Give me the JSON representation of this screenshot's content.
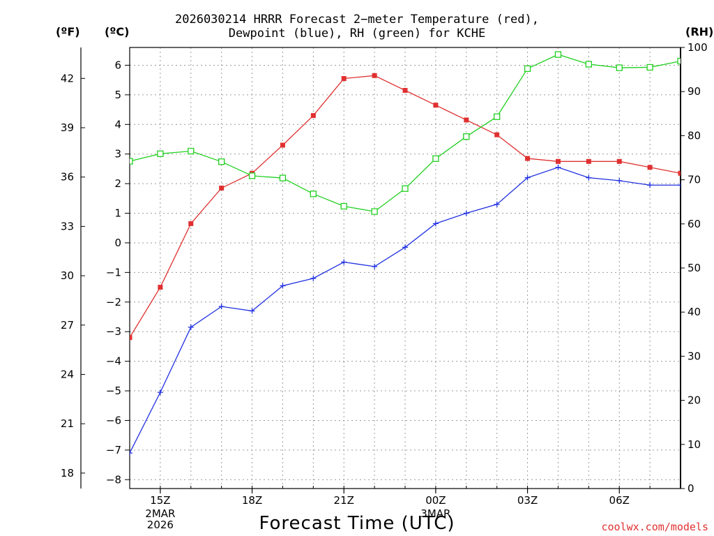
{
  "chart_data": {
    "type": "line",
    "title": "2026030214 HRRR Forecast 2−meter Temperature (red),",
    "subtitle": "Dewpoint (blue), RH (green) for KCHE",
    "xlabel": "Forecast Time (UTC)",
    "units": {
      "left_outer": "(ºF)",
      "left_inner": "(ºC)",
      "right": "(RH)"
    },
    "x": [
      14,
      15,
      16,
      17,
      18,
      19,
      20,
      21,
      22,
      23,
      24,
      25,
      26,
      27,
      28,
      29,
      30,
      31,
      32
    ],
    "xlim": [
      14,
      32
    ],
    "x_ticks": [
      {
        "x": 15,
        "label": "15Z"
      },
      {
        "x": 18,
        "label": "18Z"
      },
      {
        "x": 21,
        "label": "21Z"
      },
      {
        "x": 24,
        "label": "00Z"
      },
      {
        "x": 27,
        "label": "03Z"
      },
      {
        "x": 30,
        "label": "06Z"
      }
    ],
    "date_labels": [
      {
        "x": 15,
        "lines": [
          "2MAR",
          "2026"
        ]
      },
      {
        "x": 24,
        "lines": [
          "3MAR"
        ]
      }
    ],
    "ylim_c": [
      -8.3,
      6.6
    ],
    "yticks_c": [
      -8,
      -7,
      -6,
      -5,
      -4,
      -3,
      -2,
      -1,
      0,
      1,
      2,
      3,
      4,
      5,
      6
    ],
    "yticks_f": [
      18,
      21,
      24,
      27,
      30,
      33,
      36,
      39,
      42
    ],
    "ylim_rh": [
      0,
      100
    ],
    "yticks_rh": [
      0,
      10,
      20,
      30,
      40,
      50,
      60,
      70,
      80,
      90,
      100
    ],
    "grid": true,
    "series": [
      {
        "name": "Temperature",
        "color": "#e03030",
        "marker": "filled-square",
        "axis": "C",
        "values": [
          -3.2,
          -1.5,
          0.65,
          1.85,
          2.35,
          3.3,
          4.3,
          5.55,
          5.65,
          5.15,
          4.65,
          4.15,
          3.65,
          2.85,
          2.75,
          2.75,
          2.75,
          2.55,
          2.35
        ]
      },
      {
        "name": "Dewpoint",
        "color": "#2030e0",
        "marker": "plus",
        "axis": "C",
        "values": [
          -7.1,
          -5.05,
          -2.85,
          -2.15,
          -2.3,
          -1.45,
          -1.2,
          -0.65,
          -0.8,
          -0.15,
          0.65,
          1.0,
          1.3,
          2.2,
          2.55,
          2.2,
          2.1,
          1.95,
          1.95
        ]
      },
      {
        "name": "RH",
        "color": "#20d020",
        "marker": "open-square",
        "axis": "RH",
        "values": [
          74.2,
          75.9,
          76.5,
          74.1,
          70.9,
          70.4,
          66.8,
          64.0,
          62.8,
          68.0,
          74.8,
          79.8,
          84.3,
          95.2,
          98.4,
          96.2,
          95.4,
          95.5,
          96.9
        ]
      }
    ]
  },
  "credit": "coolwx.com/models"
}
